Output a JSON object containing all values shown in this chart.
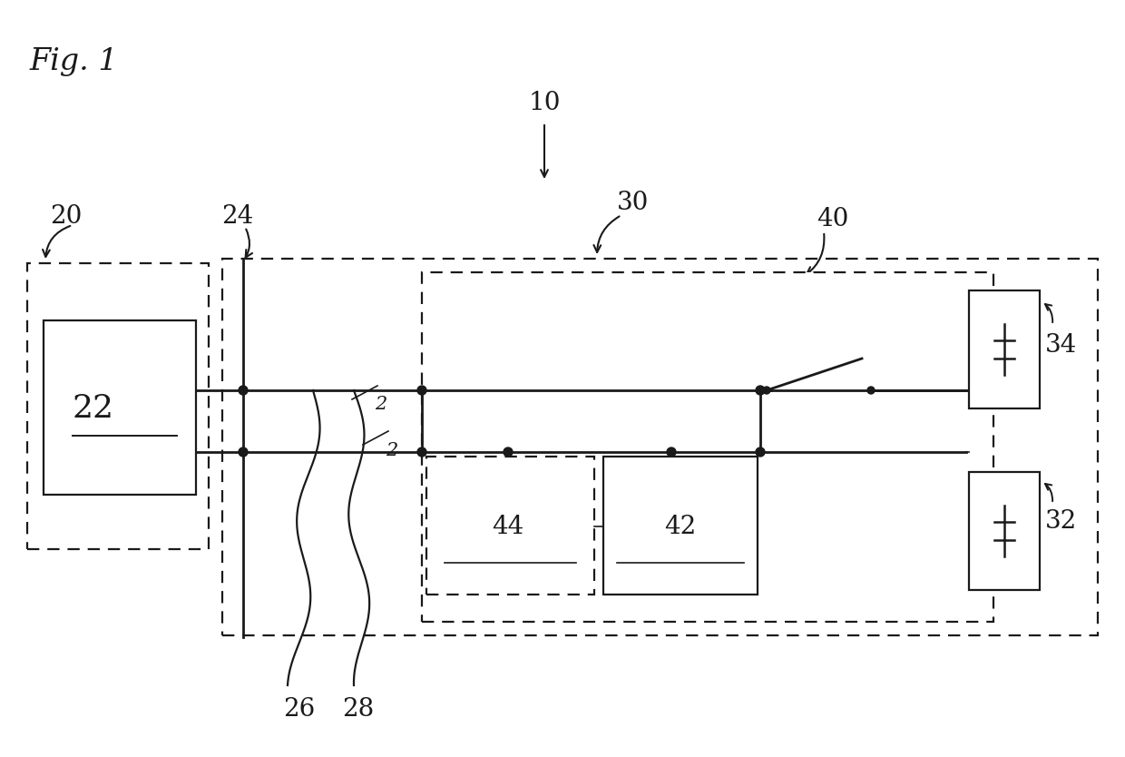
{
  "fig_label": "Fig. 1",
  "bg_color": "#ffffff",
  "lc": "#1a1a1a",
  "label_10": "10",
  "label_20": "20",
  "label_22": "22",
  "label_24": "24",
  "label_26": "26",
  "label_28": "28",
  "label_30": "30",
  "label_32": "32",
  "label_34": "34",
  "label_40": "40",
  "label_42": "42",
  "label_44": "44",
  "label_2a": "2",
  "label_2b": "2"
}
